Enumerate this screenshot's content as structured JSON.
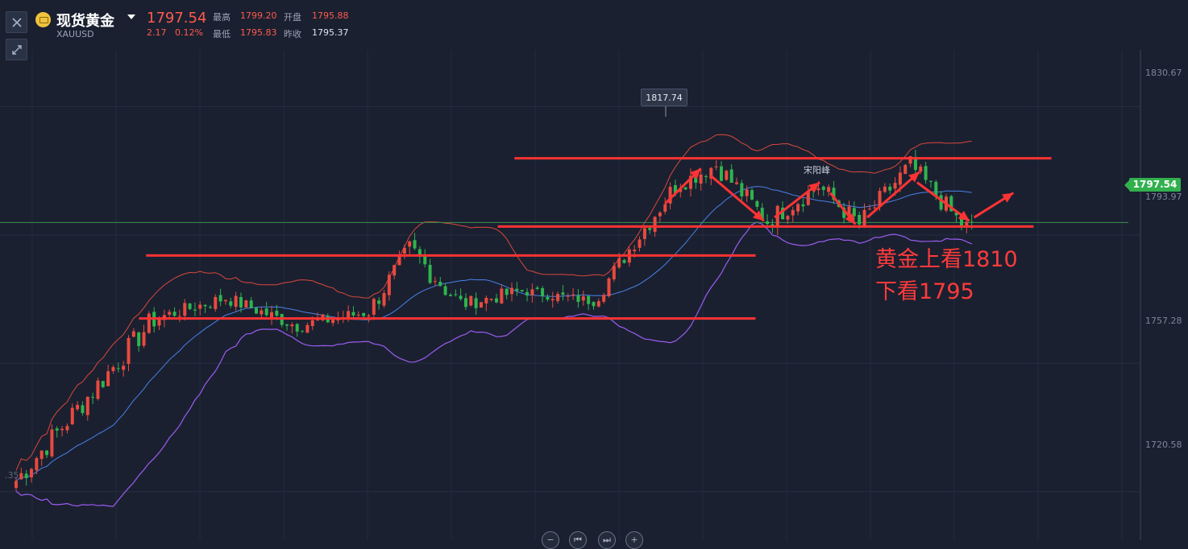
{
  "header": {
    "name": "现货黄金",
    "symbol": "XAUUSD",
    "price": "1797.54",
    "change": "2.17",
    "change_pct": "0.12%",
    "high_label": "最高",
    "high": "1799.20",
    "open_label": "开盘",
    "open": "1795.88",
    "low_label": "最低",
    "low": "1795.83",
    "prev_label": "昨收",
    "prev": "1795.37"
  },
  "toolbar": {
    "close_icon": "close-icon",
    "expand_icon": "expand-icon"
  },
  "axis": {
    "labels": [
      "1830.67",
      "1793.97",
      "1757.28",
      "1720.58"
    ]
  },
  "current_price": "1797.54",
  "peak_label": "1817.74",
  "watermark": "宋阳峰",
  "note": {
    "line1": "黄金上看1810",
    "line2": "下看1795"
  },
  "left_partial": ".35",
  "colors": {
    "up": "#e84a3f",
    "down": "#2fb44e",
    "annotation": "#ff3333",
    "mid_band": "#4a80e8",
    "low_band": "#9b5cf0",
    "up_band": "#d9473c"
  },
  "chart_data": {
    "type": "candlestick",
    "ylim": [
      1706.7,
      1846.9
    ],
    "y_ticks": [
      1830.67,
      1793.97,
      1757.28,
      1720.58
    ],
    "segments": [
      {
        "n": 28,
        "start": 1722,
        "end": 1770,
        "vol": 3.5
      },
      {
        "n": 14,
        "start": 1770,
        "end": 1776,
        "vol": 2.0
      },
      {
        "n": 14,
        "start": 1776,
        "end": 1768,
        "vol": 2.0
      },
      {
        "n": 14,
        "start": 1768,
        "end": 1772,
        "vol": 2.0
      },
      {
        "n": 8,
        "start": 1772,
        "end": 1790,
        "vol": 3.0
      },
      {
        "n": 10,
        "start": 1790,
        "end": 1774,
        "vol": 3.5
      },
      {
        "n": 12,
        "start": 1774,
        "end": 1778,
        "vol": 2.0
      },
      {
        "n": 14,
        "start": 1778,
        "end": 1775,
        "vol": 1.5
      },
      {
        "n": 8,
        "start": 1775,
        "end": 1792,
        "vol": 2.5
      },
      {
        "n": 8,
        "start": 1792,
        "end": 1808,
        "vol": 3.0
      },
      {
        "n": 8,
        "start": 1808,
        "end": 1814,
        "vol": 2.5
      },
      {
        "n": 10,
        "start": 1814,
        "end": 1798,
        "vol": 3.0
      },
      {
        "n": 10,
        "start": 1798,
        "end": 1808,
        "vol": 3.0
      },
      {
        "n": 8,
        "start": 1808,
        "end": 1797,
        "vol": 3.0
      },
      {
        "n": 10,
        "start": 1797,
        "end": 1814,
        "vol": 3.0
      },
      {
        "n": 10,
        "start": 1814,
        "end": 1797,
        "vol": 3.0
      },
      {
        "n": 2,
        "start": 1797,
        "end": 1797.54,
        "vol": 1.0
      }
    ],
    "horizontal_lines": [
      {
        "y": 1815.9,
        "from": 0.433,
        "to": 0.885
      },
      {
        "y": 1796.4,
        "from": 0.419,
        "to": 0.87
      },
      {
        "y": 1788.1,
        "from": 0.123,
        "to": 0.636
      },
      {
        "y": 1770.1,
        "from": 0.117,
        "to": 0.636
      }
    ],
    "arrows": [
      {
        "x1": 0.56,
        "y1": 1803,
        "x2": 0.59,
        "y2": 1813
      },
      {
        "x1": 0.598,
        "y1": 1811,
        "x2": 0.643,
        "y2": 1798
      },
      {
        "x1": 0.652,
        "y1": 1799,
        "x2": 0.69,
        "y2": 1809
      },
      {
        "x1": 0.699,
        "y1": 1806,
        "x2": 0.72,
        "y2": 1797
      },
      {
        "x1": 0.73,
        "y1": 1799,
        "x2": 0.774,
        "y2": 1812
      },
      {
        "x1": 0.772,
        "y1": 1809,
        "x2": 0.816,
        "y2": 1798
      },
      {
        "x1": 0.82,
        "y1": 1799,
        "x2": 0.853,
        "y2": 1806
      }
    ]
  }
}
